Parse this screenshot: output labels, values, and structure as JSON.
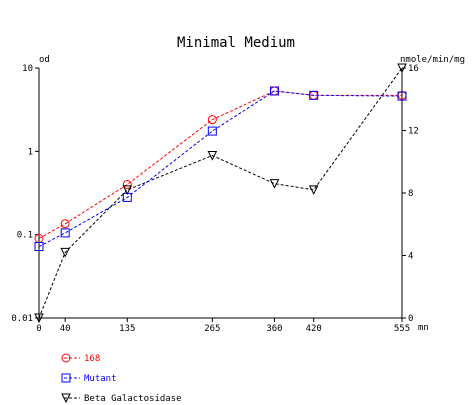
{
  "chart_data": {
    "type": "line",
    "title": "Minimal Medium",
    "y_left_label": "od",
    "y_right_label": "nmole/min/mg",
    "x_unit_label": "mn",
    "x_ticks": [
      0,
      40,
      135,
      265,
      360,
      420,
      555
    ],
    "y_left_scale": "log",
    "y_left_ticks": [
      {
        "value": 0.01,
        "label": "0.01"
      },
      {
        "value": 0.1,
        "label": "0.1"
      },
      {
        "value": 1,
        "label": "1"
      },
      {
        "value": 10,
        "label": "10"
      }
    ],
    "y_left_range": [
      0.01,
      10
    ],
    "y_right_ticks": [
      0,
      4,
      8,
      12,
      16
    ],
    "y_right_range": [
      0,
      16
    ],
    "grid": false,
    "legend_position": "bottom-left",
    "series": [
      {
        "name": "168",
        "axis": "left",
        "color": "#ff0000",
        "marker": "circle",
        "x": [
          0,
          40,
          135,
          265,
          360,
          420,
          555
        ],
        "y": [
          0.09,
          0.135,
          0.4,
          2.4,
          5.3,
          4.7,
          4.7
        ]
      },
      {
        "name": "Mutant",
        "axis": "left",
        "color": "#0000ff",
        "marker": "square",
        "x": [
          0,
          40,
          135,
          265,
          360,
          420,
          555
        ],
        "y": [
          0.072,
          0.105,
          0.28,
          1.75,
          5.3,
          4.7,
          4.6
        ]
      },
      {
        "name": "Beta Galactosidase",
        "axis": "right",
        "color": "#000000",
        "marker": "triangle-down",
        "x": [
          0,
          40,
          135,
          265,
          360,
          420,
          555
        ],
        "y": [
          0,
          4.2,
          8.2,
          10.4,
          8.6,
          8.2,
          16
        ]
      }
    ]
  }
}
